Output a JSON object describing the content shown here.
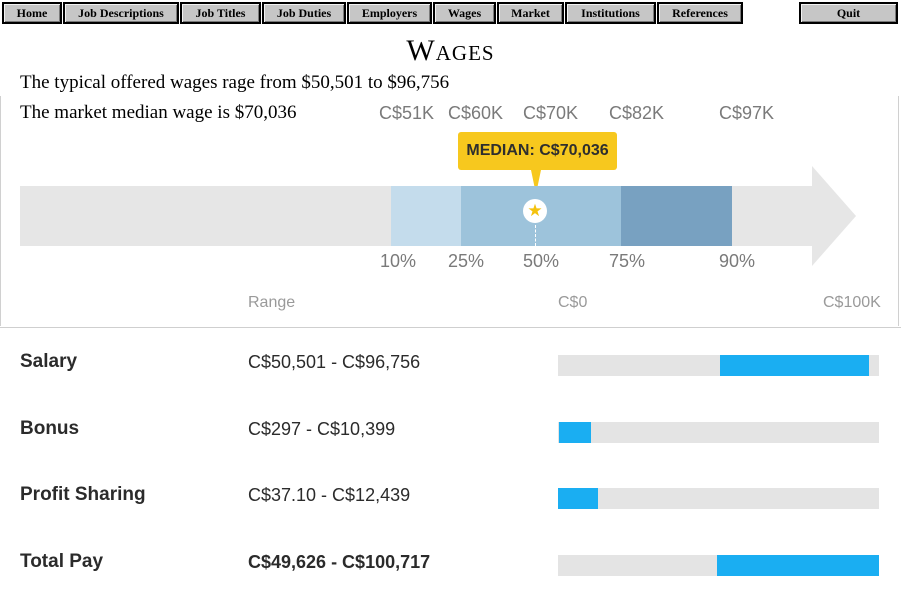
{
  "nav": {
    "items": [
      "Home",
      "Job Descriptions",
      "Job Titles",
      "Job Duties",
      "Employers",
      "Wages",
      "Market",
      "Institutions",
      "References"
    ],
    "quit": "Quit"
  },
  "page": {
    "title": "Wages",
    "typical_range_text": "The typical offered wages rage from $50,501 to $96,756",
    "median_text": "The market median wage is $70,036"
  },
  "range_chart": {
    "value_labels": [
      "C$51K",
      "C$60K",
      "C$70K",
      "C$82K",
      "C$97K"
    ],
    "percentile_labels": [
      "10%",
      "25%",
      "50%",
      "75%",
      "90%"
    ],
    "median_callout": "MEDIAN: C$70,036",
    "median_icon": "star-icon",
    "colors": {
      "band_10_25": "#c4dcec",
      "band_25_75": "#9dc3db",
      "band_75_90": "#78a1c1",
      "callout": "#f7c81e"
    }
  },
  "pay_table": {
    "header_range": "Range",
    "scale_min_label": "C$0",
    "scale_max_label": "C$100K",
    "scale_max": 100000,
    "bar_color": "#1aaef2",
    "rows": [
      {
        "name": "Salary",
        "range": "C$50,501 - C$96,756",
        "min": 50501,
        "max": 96756
      },
      {
        "name": "Bonus",
        "range": "C$297 - C$10,399",
        "min": 297,
        "max": 10399
      },
      {
        "name": "Profit Sharing",
        "range": "C$37.10 - C$12,439",
        "min": 37.1,
        "max": 12439
      },
      {
        "name": "Total Pay",
        "range": "C$49,626 - C$100,717",
        "min": 49626,
        "max": 100717
      }
    ]
  }
}
